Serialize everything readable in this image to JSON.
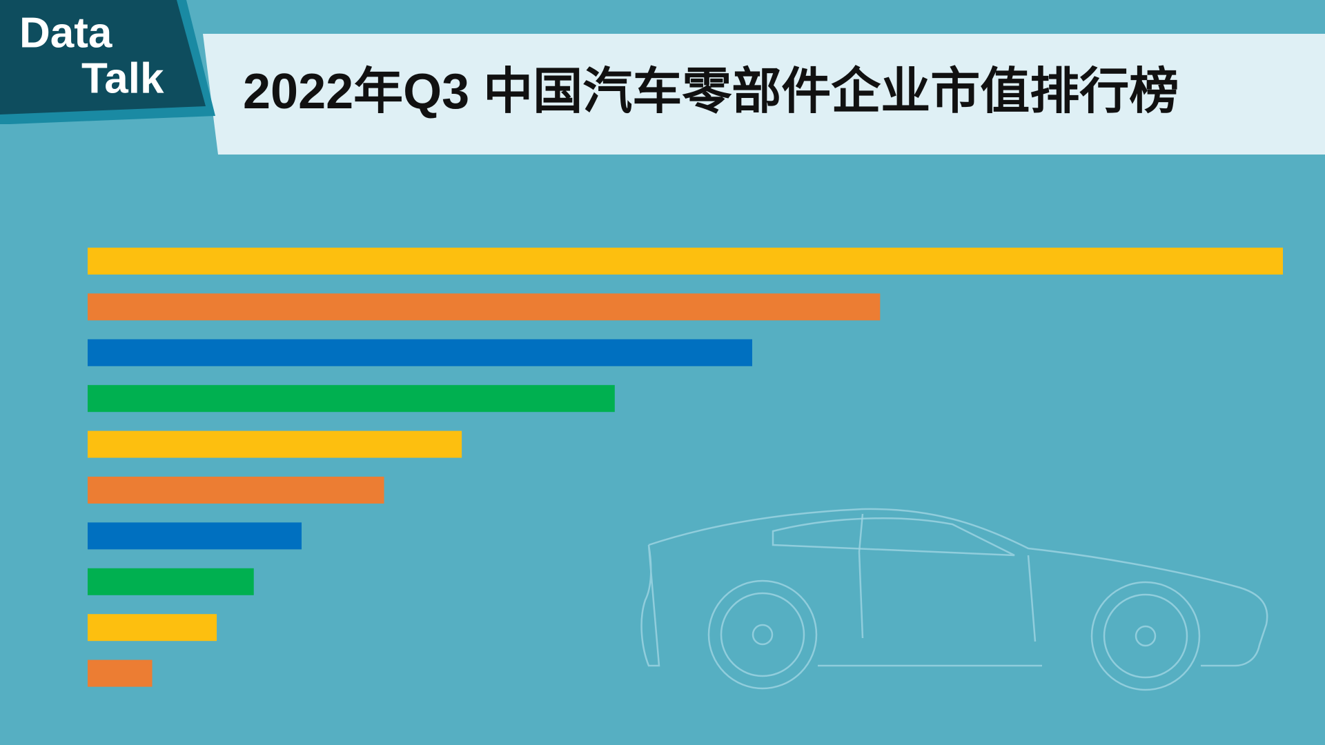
{
  "logo": {
    "line1": "Data",
    "line2": "Talk"
  },
  "chart_data": {
    "type": "bar",
    "orientation": "horizontal",
    "title": "2022年Q3 中国汽车零部件企业市值排行榜",
    "categories": [
      null,
      null,
      null,
      null,
      null,
      null,
      null,
      null,
      null,
      null
    ],
    "values": [
      100,
      66.3,
      55.6,
      44.1,
      31.3,
      24.8,
      17.9,
      13.9,
      10.8,
      5.4
    ],
    "colors": [
      "#fdbf0f",
      "#ec7d33",
      "#0070c0",
      "#00b050",
      "#fdbf0f",
      "#ec7d33",
      "#0070c0",
      "#00b050",
      "#fdbf0f",
      "#ec7d33"
    ],
    "xlim": [
      0,
      100
    ],
    "grid": false
  }
}
